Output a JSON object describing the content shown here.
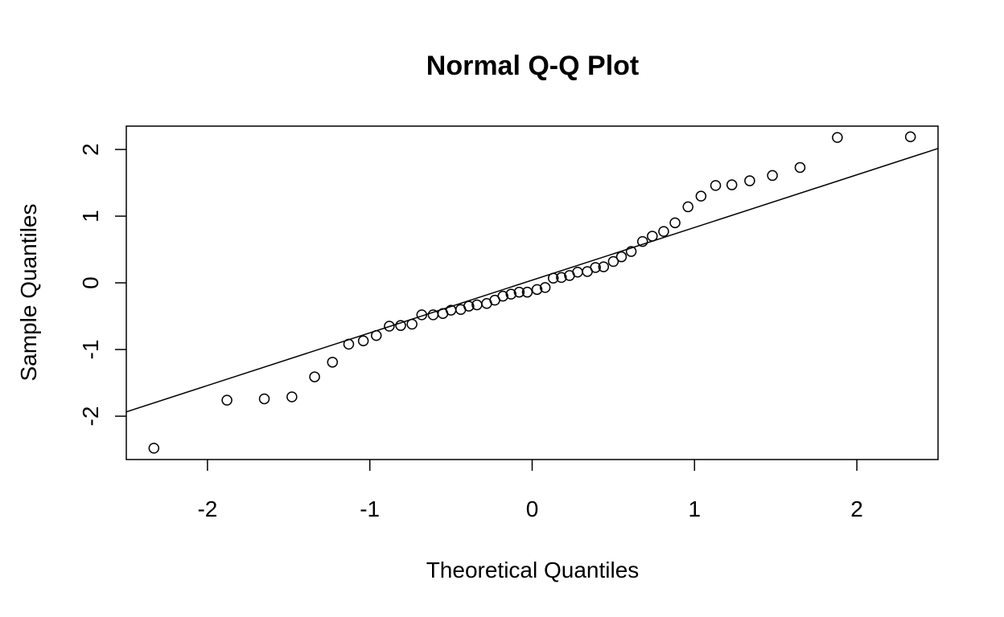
{
  "chart_data": {
    "type": "scatter",
    "title": "Normal Q-Q Plot",
    "xlabel": "Theoretical Quantiles",
    "ylabel": "Sample Quantiles",
    "xlim": [
      -2.5,
      2.5
    ],
    "ylim": [
      -2.65,
      2.35
    ],
    "x_ticks": [
      -2,
      -1,
      0,
      1,
      2
    ],
    "x_tick_labels": [
      "-2",
      "-1",
      "0",
      "1",
      "2"
    ],
    "y_ticks": [
      -2,
      -1,
      0,
      1,
      2
    ],
    "y_tick_labels": [
      "-2",
      "-1",
      "0",
      "1",
      "2"
    ],
    "grid": false,
    "legend": "none",
    "reference_line": {
      "intercept": 0.04,
      "slope": 0.79
    },
    "points": [
      [
        -2.33,
        -2.48
      ],
      [
        -1.88,
        -1.76
      ],
      [
        -1.65,
        -1.74
      ],
      [
        -1.48,
        -1.71
      ],
      [
        -1.34,
        -1.41
      ],
      [
        -1.23,
        -1.19
      ],
      [
        -1.13,
        -0.92
      ],
      [
        -1.04,
        -0.87
      ],
      [
        -0.96,
        -0.79
      ],
      [
        -0.88,
        -0.65
      ],
      [
        -0.81,
        -0.64
      ],
      [
        -0.74,
        -0.62
      ],
      [
        -0.68,
        -0.48
      ],
      [
        -0.61,
        -0.48
      ],
      [
        -0.55,
        -0.46
      ],
      [
        -0.5,
        -0.41
      ],
      [
        -0.44,
        -0.4
      ],
      [
        -0.39,
        -0.35
      ],
      [
        -0.34,
        -0.33
      ],
      [
        -0.28,
        -0.31
      ],
      [
        -0.23,
        -0.26
      ],
      [
        -0.18,
        -0.2
      ],
      [
        -0.13,
        -0.17
      ],
      [
        -0.08,
        -0.14
      ],
      [
        -0.03,
        -0.14
      ],
      [
        0.03,
        -0.1
      ],
      [
        0.08,
        -0.07
      ],
      [
        0.13,
        0.07
      ],
      [
        0.18,
        0.08
      ],
      [
        0.23,
        0.11
      ],
      [
        0.28,
        0.16
      ],
      [
        0.34,
        0.17
      ],
      [
        0.39,
        0.23
      ],
      [
        0.44,
        0.24
      ],
      [
        0.5,
        0.32
      ],
      [
        0.55,
        0.39
      ],
      [
        0.61,
        0.47
      ],
      [
        0.68,
        0.62
      ],
      [
        0.74,
        0.7
      ],
      [
        0.81,
        0.77
      ],
      [
        0.88,
        0.9
      ],
      [
        0.96,
        1.14
      ],
      [
        1.04,
        1.3
      ],
      [
        1.13,
        1.46
      ],
      [
        1.23,
        1.47
      ],
      [
        1.34,
        1.53
      ],
      [
        1.48,
        1.61
      ],
      [
        1.65,
        1.73
      ],
      [
        1.88,
        2.18
      ],
      [
        2.33,
        2.19
      ]
    ]
  }
}
